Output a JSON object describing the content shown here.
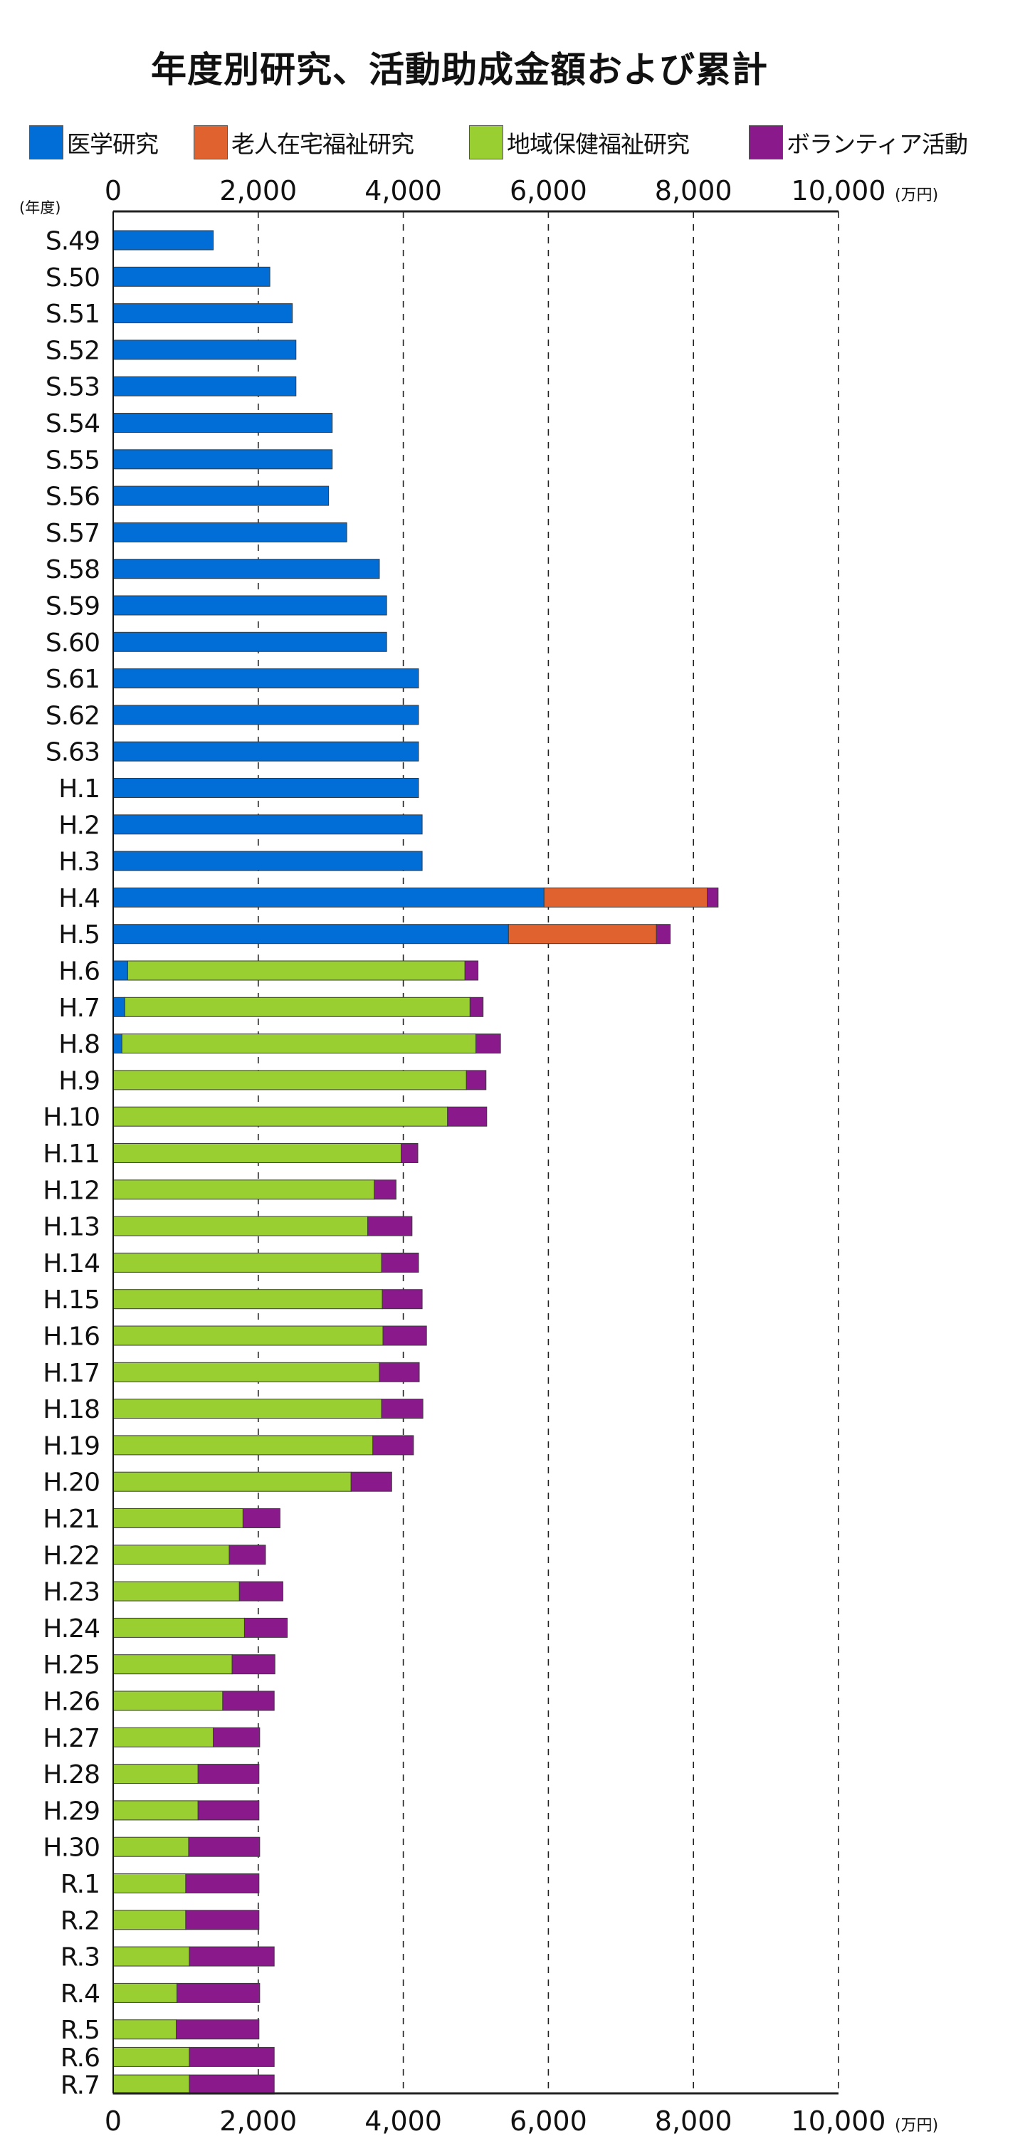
{
  "chart_data": {
    "type": "bar",
    "orientation": "horizontal",
    "stacked": true,
    "title": "年度別研究、活動助成金額および累計",
    "xlabel_unit": "(万円)",
    "ylabel": "(年度)",
    "xlim": [
      0,
      10000
    ],
    "xticks": [
      0,
      2000,
      4000,
      6000,
      8000,
      10000
    ],
    "xtick_labels": [
      "0",
      "2,000",
      "4,000",
      "6,000",
      "8,000",
      "10,000"
    ],
    "grid": "vertical dashed",
    "legend_position": "top",
    "categories": [
      "S.49",
      "S.50",
      "S.51",
      "S.52",
      "S.53",
      "S.54",
      "S.55",
      "S.56",
      "S.57",
      "S.58",
      "S.59",
      "S.60",
      "S.61",
      "S.62",
      "S.63",
      "H.1",
      "H.2",
      "H.3",
      "H.4",
      "H.5",
      "H.6",
      "H.7",
      "H.8",
      "H.9",
      "H.10",
      "H.11",
      "H.12",
      "H.13",
      "H.14",
      "H.15",
      "H.16",
      "H.17",
      "H.18",
      "H.19",
      "H.20",
      "H.21",
      "H.22",
      "H.23",
      "H.24",
      "H.25",
      "H.26",
      "H.27",
      "H.28",
      "H.29",
      "H.30",
      "R.1",
      "R.2",
      "R.3",
      "R.4",
      "R.5",
      "R.6",
      "R.7"
    ],
    "series": [
      {
        "name": "医学研究",
        "color": "#016DD6",
        "values": [
          1380,
          2160,
          2470,
          2520,
          2520,
          3020,
          3020,
          2970,
          3220,
          3670,
          3770,
          3770,
          4210,
          4210,
          4210,
          4210,
          4260,
          4260,
          5940,
          5450,
          200,
          160,
          120,
          0,
          0,
          0,
          0,
          0,
          0,
          0,
          0,
          0,
          0,
          0,
          0,
          0,
          0,
          0,
          0,
          0,
          0,
          0,
          0,
          0,
          0,
          0,
          0,
          0,
          0,
          0,
          0,
          0
        ]
      },
      {
        "name": "老人在宅福祉研究",
        "color": "#E0622E",
        "values": [
          0,
          0,
          0,
          0,
          0,
          0,
          0,
          0,
          0,
          0,
          0,
          0,
          0,
          0,
          0,
          0,
          0,
          0,
          2250,
          2040,
          0,
          0,
          0,
          0,
          0,
          0,
          0,
          0,
          0,
          0,
          0,
          0,
          0,
          0,
          0,
          0,
          0,
          0,
          0,
          0,
          0,
          0,
          0,
          0,
          0,
          0,
          0,
          0,
          0,
          0,
          0,
          0
        ]
      },
      {
        "name": "地域保健福祉研究",
        "color": "#9ACF31",
        "values": [
          0,
          0,
          0,
          0,
          0,
          0,
          0,
          0,
          0,
          0,
          0,
          0,
          0,
          0,
          0,
          0,
          0,
          0,
          0,
          0,
          4650,
          4760,
          4880,
          4870,
          4610,
          3970,
          3600,
          3510,
          3700,
          3710,
          3720,
          3670,
          3700,
          3580,
          3280,
          1790,
          1600,
          1740,
          1810,
          1640,
          1510,
          1380,
          1170,
          1170,
          1040,
          1000,
          1000,
          1050,
          880,
          870,
          1050,
          1050
        ]
      },
      {
        "name": "ボランティア活動",
        "color": "#8A1A8C",
        "values": [
          0,
          0,
          0,
          0,
          0,
          0,
          0,
          0,
          0,
          0,
          0,
          0,
          0,
          0,
          0,
          0,
          0,
          0,
          150,
          190,
          180,
          180,
          340,
          270,
          540,
          230,
          300,
          610,
          510,
          550,
          600,
          550,
          570,
          560,
          560,
          510,
          500,
          600,
          590,
          590,
          710,
          640,
          840,
          840,
          980,
          1010,
          1010,
          1170,
          1140,
          1140,
          1170,
          1170
        ]
      }
    ]
  }
}
